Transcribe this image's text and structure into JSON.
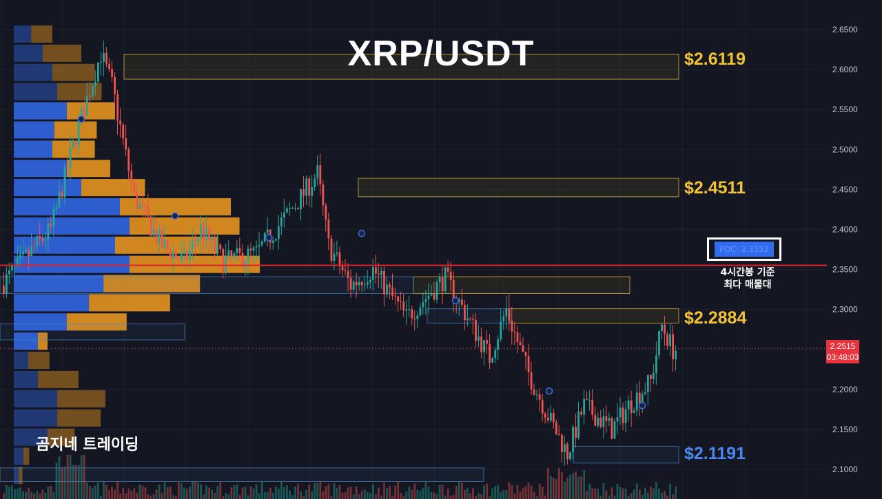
{
  "chart_data": {
    "type": "candlestick",
    "title": "XRP/USDT",
    "yaxis": {
      "range": [
        2.085,
        2.66
      ],
      "ticks": [
        "2.6500",
        "2.6000",
        "2.5500",
        "2.5000",
        "2.4500",
        "2.4000",
        "2.3500",
        "2.3000",
        "2.2500",
        "2.2000",
        "2.1500",
        "2.1000"
      ]
    },
    "current_price": {
      "value": "2.2515",
      "countdown": "03:48:03",
      "color": "#e8323c"
    },
    "levels": [
      {
        "label": "$2.6119",
        "value": 2.6119,
        "color": "#f2c230"
      },
      {
        "label": "$2.4511",
        "value": 2.4511,
        "color": "#f2c230"
      },
      {
        "label": "$2.2884",
        "value": 2.2884,
        "color": "#f2c230"
      },
      {
        "label": "$2.1191",
        "value": 2.1191,
        "color": "#4a86f0"
      }
    ],
    "poc": {
      "label": "POC: 2.3552",
      "value": 2.3552,
      "note_line1": "4시간봉 기준",
      "note_line2": "최다 매물대",
      "line_color": "#e0202a"
    },
    "colors": {
      "up": "#26a69a",
      "down": "#ef5350",
      "profile_blue": "#2f62d8",
      "profile_orange": "#e69420",
      "zone_yellow": "#f2c230",
      "zone_blue": "#4a86c8"
    },
    "volume_profile": [
      {
        "price": 2.644,
        "buy": 0.18,
        "sell": 0.22
      },
      {
        "price": 2.62,
        "buy": 0.3,
        "sell": 0.4
      },
      {
        "price": 2.596,
        "buy": 0.4,
        "sell": 0.44
      },
      {
        "price": 2.572,
        "buy": 0.45,
        "sell": 0.46
      },
      {
        "price": 2.548,
        "buy": 0.55,
        "sell": 0.5
      },
      {
        "price": 2.524,
        "buy": 0.42,
        "sell": 0.44
      },
      {
        "price": 2.5,
        "buy": 0.4,
        "sell": 0.44
      },
      {
        "price": 2.476,
        "buy": 0.55,
        "sell": 0.45
      },
      {
        "price": 2.452,
        "buy": 0.7,
        "sell": 0.66
      },
      {
        "price": 2.428,
        "buy": 1.1,
        "sell": 1.15
      },
      {
        "price": 2.404,
        "buy": 1.2,
        "sell": 1.14
      },
      {
        "price": 2.38,
        "buy": 1.05,
        "sell": 1.07
      },
      {
        "price": 2.356,
        "buy": 1.2,
        "sell": 1.35
      },
      {
        "price": 2.332,
        "buy": 0.93,
        "sell": 1.0
      },
      {
        "price": 2.308,
        "buy": 0.78,
        "sell": 0.84
      },
      {
        "price": 2.284,
        "buy": 0.55,
        "sell": 0.62
      },
      {
        "price": 2.26,
        "buy": 0.25,
        "sell": 0.1
      },
      {
        "price": 2.236,
        "buy": 0.15,
        "sell": 0.22
      },
      {
        "price": 2.212,
        "buy": 0.25,
        "sell": 0.42
      },
      {
        "price": 2.188,
        "buy": 0.45,
        "sell": 0.5
      },
      {
        "price": 2.164,
        "buy": 0.45,
        "sell": 0.45
      },
      {
        "price": 2.14,
        "buy": 0.35,
        "sell": 0.28
      },
      {
        "price": 2.116,
        "buy": 0.1,
        "sell": 0.06
      },
      {
        "price": 2.092,
        "buy": 0.05,
        "sell": 0.04
      }
    ],
    "zones": [
      {
        "low": 2.588,
        "high": 2.619,
        "x1": 180,
        "x2": 985,
        "color": "yellow"
      },
      {
        "low": 2.441,
        "high": 2.464,
        "x1": 520,
        "x2": 985,
        "color": "yellow"
      },
      {
        "low": 2.283,
        "high": 2.301,
        "x1": 740,
        "x2": 985,
        "color": "yellow"
      },
      {
        "low": 2.32,
        "high": 2.341,
        "x1": 600,
        "x2": 914,
        "color": "yellow"
      },
      {
        "low": 2.32,
        "high": 2.341,
        "x1": 0,
        "x2": 600,
        "color": "blue"
      },
      {
        "low": 2.262,
        "high": 2.282,
        "x1": 0,
        "x2": 268,
        "color": "blue"
      },
      {
        "low": 2.108,
        "high": 2.129,
        "x1": 832,
        "x2": 985,
        "color": "blue"
      },
      {
        "low": 2.085,
        "high": 2.102,
        "x1": 0,
        "x2": 702,
        "color": "blue"
      },
      {
        "low": 2.283,
        "high": 2.301,
        "x1": 620,
        "x2": 740,
        "color": "blue"
      }
    ],
    "anchors": [
      {
        "t": 0,
        "p": 2.33
      },
      {
        "t": 18,
        "p": 2.4
      },
      {
        "t": 28,
        "p": 2.53
      },
      {
        "t": 36,
        "p": 2.62
      },
      {
        "t": 40,
        "p": 2.58
      },
      {
        "t": 48,
        "p": 2.44
      },
      {
        "t": 58,
        "p": 2.38
      },
      {
        "t": 66,
        "p": 2.36
      },
      {
        "t": 72,
        "p": 2.4
      },
      {
        "t": 80,
        "p": 2.36
      },
      {
        "t": 92,
        "p": 2.37
      },
      {
        "t": 108,
        "p": 2.44
      },
      {
        "t": 114,
        "p": 2.47
      },
      {
        "t": 118,
        "p": 2.38
      },
      {
        "t": 126,
        "p": 2.33
      },
      {
        "t": 134,
        "p": 2.35
      },
      {
        "t": 146,
        "p": 2.29
      },
      {
        "t": 160,
        "p": 2.34
      },
      {
        "t": 168,
        "p": 2.29
      },
      {
        "t": 176,
        "p": 2.24
      },
      {
        "t": 182,
        "p": 2.3
      },
      {
        "t": 190,
        "p": 2.22
      },
      {
        "t": 198,
        "p": 2.16
      },
      {
        "t": 204,
        "p": 2.12
      },
      {
        "t": 210,
        "p": 2.18
      },
      {
        "t": 220,
        "p": 2.15
      },
      {
        "t": 226,
        "p": 2.18
      },
      {
        "t": 234,
        "p": 2.21
      },
      {
        "t": 238,
        "p": 2.28
      },
      {
        "t": 242,
        "p": 2.25
      }
    ]
  }
}
